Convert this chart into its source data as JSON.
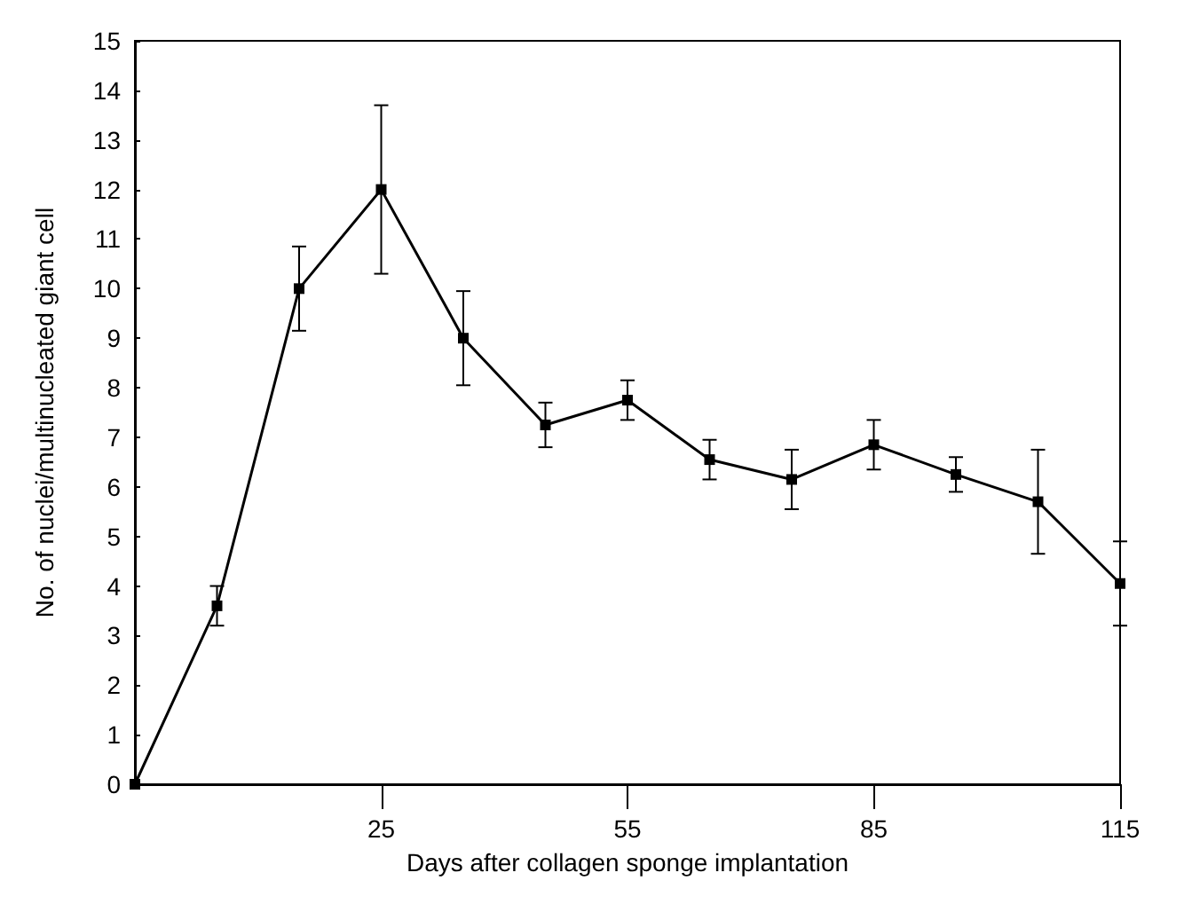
{
  "chart_data": {
    "type": "line",
    "xlabel": "Days after collagen sponge implantation",
    "ylabel": "No. of nuclei/multinucleated giant cell",
    "categories": [
      null,
      null,
      null,
      "25",
      null,
      null,
      "55",
      null,
      null,
      "85",
      null,
      null,
      "115"
    ],
    "series": [
      {
        "color": "#000000",
        "values": [
          0,
          3.6,
          10,
          12,
          9,
          7.25,
          7.75,
          6.55,
          6.15,
          6.85,
          6.25,
          5.7,
          4.05
        ],
        "errors": [
          null,
          0.4,
          0.85,
          1.7,
          0.95,
          0.45,
          0.4,
          0.4,
          0.6,
          0.5,
          0.35,
          1.05,
          0.85
        ]
      }
    ],
    "ylim": [
      0,
      15
    ],
    "yticks": [
      0,
      1,
      2,
      3,
      4,
      5,
      6,
      7,
      8,
      9,
      10,
      11,
      12,
      13,
      14,
      15
    ],
    "grid": false,
    "marker": "square",
    "line_style": "solid"
  }
}
